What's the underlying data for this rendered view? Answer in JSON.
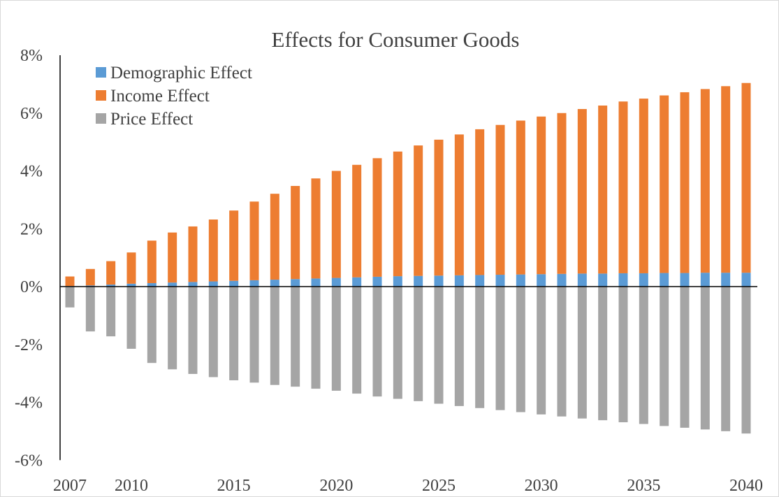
{
  "chart_data": {
    "type": "bar",
    "stacked": true,
    "title": "Effects for Consumer Goods",
    "xlabel": "",
    "ylabel": "",
    "ylim": [
      -6,
      8
    ],
    "y_unit": "%",
    "y_ticks": [
      "8%",
      "6%",
      "4%",
      "2%",
      "0%",
      "-2%",
      "-4%",
      "-6%"
    ],
    "y_tick_values": [
      8,
      6,
      4,
      2,
      0,
      -2,
      -4,
      -6
    ],
    "x_tick_labels": [
      "2007",
      "2010",
      "2015",
      "2020",
      "2025",
      "2030",
      "2035",
      "2040"
    ],
    "x_tick_values": [
      2007,
      2010,
      2015,
      2020,
      2025,
      2030,
      2035,
      2040
    ],
    "grid": false,
    "legend_position": "top-left",
    "categories": [
      2007,
      2008,
      2009,
      2010,
      2011,
      2012,
      2013,
      2014,
      2015,
      2016,
      2017,
      2018,
      2019,
      2020,
      2021,
      2022,
      2023,
      2024,
      2025,
      2026,
      2027,
      2028,
      2029,
      2030,
      2031,
      2032,
      2033,
      2034,
      2035,
      2036,
      2037,
      2038,
      2039,
      2040
    ],
    "series": [
      {
        "name": "Demographic Effect",
        "color": "#5b9bd5",
        "values": [
          0.02,
          0.04,
          0.07,
          0.1,
          0.12,
          0.14,
          0.16,
          0.18,
          0.2,
          0.22,
          0.24,
          0.26,
          0.28,
          0.3,
          0.32,
          0.34,
          0.36,
          0.37,
          0.38,
          0.39,
          0.4,
          0.41,
          0.42,
          0.43,
          0.44,
          0.45,
          0.45,
          0.46,
          0.46,
          0.47,
          0.47,
          0.48,
          0.48,
          0.48
        ]
      },
      {
        "name": "Income Effect",
        "color": "#ed7d31",
        "values": [
          0.33,
          0.57,
          0.81,
          1.08,
          1.47,
          1.73,
          1.92,
          2.14,
          2.43,
          2.72,
          2.97,
          3.22,
          3.46,
          3.7,
          3.89,
          4.1,
          4.31,
          4.51,
          4.7,
          4.87,
          5.04,
          5.18,
          5.32,
          5.45,
          5.56,
          5.69,
          5.81,
          5.94,
          6.04,
          6.14,
          6.25,
          6.35,
          6.45,
          6.56
        ]
      },
      {
        "name": "Price Effect",
        "color": "#a5a5a5",
        "values": [
          -0.72,
          -1.55,
          -1.72,
          -2.15,
          -2.64,
          -2.86,
          -3.02,
          -3.13,
          -3.24,
          -3.32,
          -3.4,
          -3.46,
          -3.53,
          -3.6,
          -3.7,
          -3.8,
          -3.88,
          -3.96,
          -4.05,
          -4.13,
          -4.2,
          -4.27,
          -4.34,
          -4.42,
          -4.49,
          -4.56,
          -4.62,
          -4.69,
          -4.75,
          -4.82,
          -4.88,
          -4.94,
          -5.0,
          -5.08
        ]
      }
    ]
  }
}
